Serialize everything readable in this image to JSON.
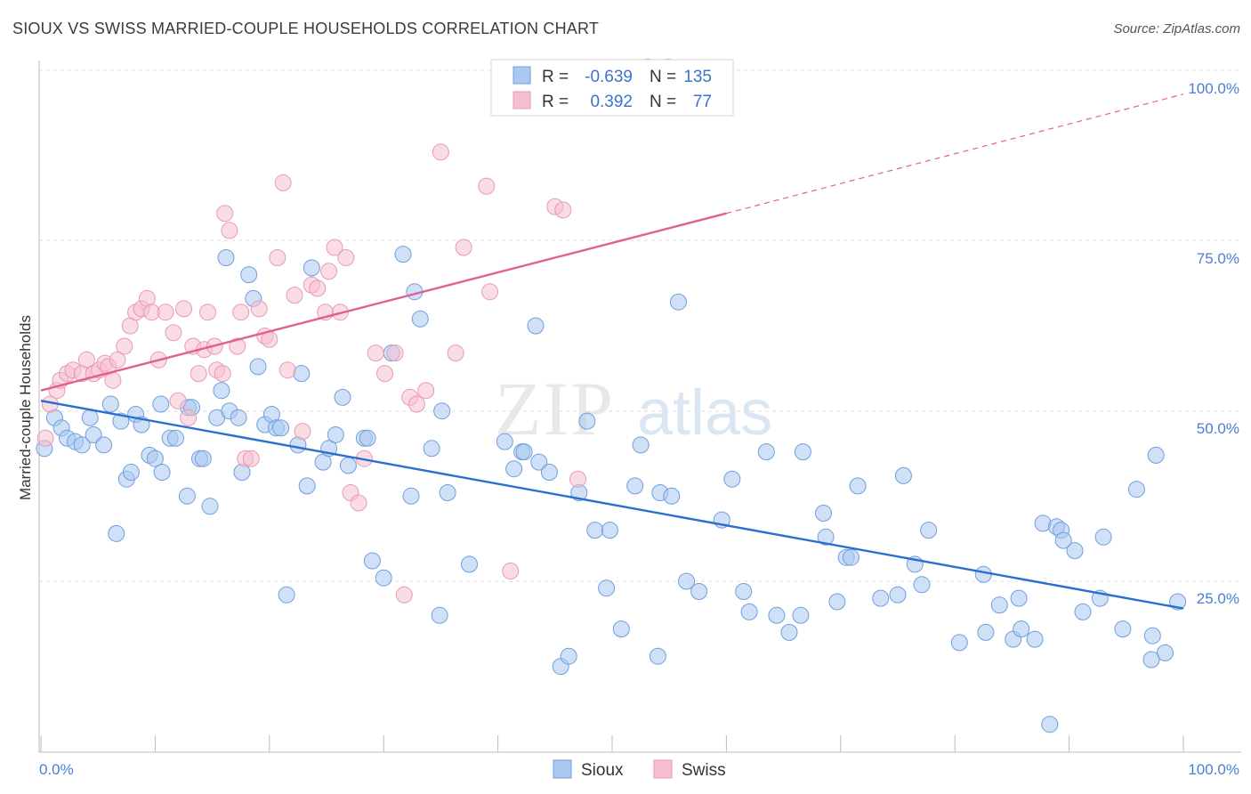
{
  "title": "SIOUX VS SWISS MARRIED-COUPLE HOUSEHOLDS CORRELATION CHART",
  "source": "Source: ZipAtlas.com",
  "watermark": {
    "zip": "ZIP",
    "atlas": "atlas"
  },
  "colors": {
    "sioux_fill": "#aac8f0",
    "sioux_stroke": "#6f9fdc",
    "sioux_line": "#2a6fd0",
    "swiss_fill": "#f6bfd0",
    "swiss_stroke": "#e89ab4",
    "swiss_line": "#e0608e",
    "tick_text": "#4a7fd0",
    "grid": "#dddddd"
  },
  "legend_top": {
    "row1": {
      "r_label": "R =",
      "r_value": "-0.639",
      "n_label": "N =",
      "n_value": "135"
    },
    "row2": {
      "r_label": "R =",
      "r_value": "0.392",
      "n_label": "N =",
      "n_value": "77"
    }
  },
  "legend_bottom": {
    "series1": "Sioux",
    "series2": "Swiss"
  },
  "chart_data": {
    "type": "scatter",
    "title": "SIOUX VS SWISS MARRIED-COUPLE HOUSEHOLDS CORRELATION CHART",
    "xlabel": "",
    "ylabel": "Married-couple Households",
    "xlim": [
      0,
      100
    ],
    "ylim": [
      0,
      105
    ],
    "x_tick_labels": [
      "0.0%",
      "100.0%"
    ],
    "y_tick_labels": [
      "25.0%",
      "50.0%",
      "75.0%",
      "100.0%"
    ],
    "y_ticks": [
      25,
      50,
      75,
      100
    ],
    "grid": true,
    "series": [
      {
        "name": "Sioux",
        "trend": {
          "x": [
            0,
            100
          ],
          "y": [
            51.5,
            21.0
          ]
        },
        "points": [
          [
            0.3,
            44.5
          ],
          [
            1.2,
            49
          ],
          [
            1.8,
            47.5
          ],
          [
            2.3,
            46
          ],
          [
            3,
            45.5
          ],
          [
            3.6,
            45
          ],
          [
            4.3,
            49
          ],
          [
            4.6,
            46.5
          ],
          [
            5.5,
            45
          ],
          [
            6.1,
            51
          ],
          [
            6.6,
            32
          ],
          [
            7,
            48.5
          ],
          [
            7.5,
            40
          ],
          [
            7.9,
            41
          ],
          [
            8.3,
            49.5
          ],
          [
            8.8,
            48
          ],
          [
            9.5,
            43.5
          ],
          [
            10,
            43
          ],
          [
            10.5,
            51
          ],
          [
            10.6,
            41
          ],
          [
            11.3,
            46
          ],
          [
            11.8,
            46
          ],
          [
            12.8,
            37.5
          ],
          [
            12.9,
            50.5
          ],
          [
            13.2,
            50.5
          ],
          [
            13.9,
            43
          ],
          [
            14.2,
            43
          ],
          [
            14.8,
            36
          ],
          [
            15.4,
            49
          ],
          [
            15.8,
            53
          ],
          [
            16.2,
            72.5
          ],
          [
            16.5,
            50
          ],
          [
            17.3,
            49
          ],
          [
            17.6,
            41
          ],
          [
            18.2,
            70
          ],
          [
            18.6,
            66.5
          ],
          [
            19,
            56.5
          ],
          [
            19.6,
            48
          ],
          [
            20.2,
            49.5
          ],
          [
            20.6,
            47.5
          ],
          [
            21,
            47.5
          ],
          [
            21.5,
            23
          ],
          [
            22.5,
            45
          ],
          [
            22.8,
            55.5
          ],
          [
            23.3,
            39
          ],
          [
            23.7,
            71
          ],
          [
            24.7,
            42.5
          ],
          [
            25.2,
            44.5
          ],
          [
            25.8,
            46.5
          ],
          [
            26.4,
            52
          ],
          [
            26.9,
            42
          ],
          [
            28.3,
            46
          ],
          [
            28.6,
            46
          ],
          [
            29,
            28
          ],
          [
            30,
            25.5
          ],
          [
            30.7,
            58.5
          ],
          [
            31.7,
            73
          ],
          [
            32.4,
            37.5
          ],
          [
            32.7,
            67.5
          ],
          [
            33.2,
            63.5
          ],
          [
            34.2,
            44.5
          ],
          [
            34.9,
            20
          ],
          [
            35.1,
            50
          ],
          [
            35.6,
            38
          ],
          [
            37.5,
            27.5
          ],
          [
            40.6,
            45.5
          ],
          [
            41.4,
            41.5
          ],
          [
            42.1,
            44
          ],
          [
            42.3,
            44
          ],
          [
            43.3,
            62.5
          ],
          [
            43.6,
            42.5
          ],
          [
            44.5,
            41
          ],
          [
            45.5,
            12.5
          ],
          [
            46.2,
            14
          ],
          [
            47.1,
            38
          ],
          [
            47.8,
            48.5
          ],
          [
            48.5,
            32.5
          ],
          [
            49.5,
            24
          ],
          [
            49.8,
            32.5
          ],
          [
            50.8,
            18
          ],
          [
            52,
            39
          ],
          [
            52.5,
            45
          ],
          [
            54,
            14
          ],
          [
            54.2,
            38
          ],
          [
            55.2,
            37.5
          ],
          [
            55.8,
            66
          ],
          [
            56.5,
            25
          ],
          [
            57.6,
            23.5
          ],
          [
            59.6,
            34
          ],
          [
            60.5,
            40
          ],
          [
            61.5,
            23.5
          ],
          [
            62,
            20.5
          ],
          [
            63.5,
            44
          ],
          [
            64.4,
            20
          ],
          [
            65.5,
            17.5
          ],
          [
            66.5,
            20
          ],
          [
            66.7,
            44
          ],
          [
            68.5,
            35
          ],
          [
            68.7,
            31.5
          ],
          [
            69.7,
            22
          ],
          [
            70.5,
            28.5
          ],
          [
            70.9,
            28.5
          ],
          [
            71.5,
            39
          ],
          [
            73.5,
            22.5
          ],
          [
            75,
            23
          ],
          [
            75.5,
            40.5
          ],
          [
            76.5,
            27.5
          ],
          [
            77.1,
            24.5
          ],
          [
            77.7,
            32.5
          ],
          [
            80.4,
            16
          ],
          [
            82.5,
            26
          ],
          [
            82.7,
            17.5
          ],
          [
            83.9,
            21.5
          ],
          [
            85.1,
            16.5
          ],
          [
            85.6,
            22.5
          ],
          [
            85.8,
            18
          ],
          [
            87,
            16.5
          ],
          [
            87.7,
            33.5
          ],
          [
            88.3,
            4
          ],
          [
            88.9,
            33
          ],
          [
            89.3,
            32.5
          ],
          [
            89.5,
            31
          ],
          [
            90.5,
            29.5
          ],
          [
            91.2,
            20.5
          ],
          [
            92.7,
            22.5
          ],
          [
            93,
            31.5
          ],
          [
            94.7,
            18
          ],
          [
            95.9,
            38.5
          ],
          [
            97.2,
            13.5
          ],
          [
            97.3,
            17
          ],
          [
            97.6,
            43.5
          ],
          [
            98.4,
            14.5
          ],
          [
            99.5,
            22
          ]
        ]
      },
      {
        "name": "Swiss",
        "trend": {
          "x": [
            0,
            60
          ],
          "y": [
            53.0,
            79.0
          ],
          "x_dashed_end": 100,
          "y_dashed_end": 96.5
        },
        "points": [
          [
            0.4,
            46
          ],
          [
            0.8,
            51
          ],
          [
            1.4,
            53
          ],
          [
            1.7,
            54.5
          ],
          [
            2.3,
            55.5
          ],
          [
            2.8,
            56
          ],
          [
            3.6,
            55.5
          ],
          [
            4,
            57.5
          ],
          [
            4.6,
            55.5
          ],
          [
            5.1,
            56
          ],
          [
            5.6,
            57
          ],
          [
            5.9,
            56.5
          ],
          [
            6.3,
            54.5
          ],
          [
            6.7,
            57.5
          ],
          [
            7.3,
            59.5
          ],
          [
            7.8,
            62.5
          ],
          [
            8.3,
            64.5
          ],
          [
            8.8,
            65
          ],
          [
            9.3,
            66.5
          ],
          [
            9.7,
            64.5
          ],
          [
            10.3,
            57.5
          ],
          [
            10.9,
            64.5
          ],
          [
            11.6,
            61.5
          ],
          [
            12,
            51.5
          ],
          [
            12.5,
            65
          ],
          [
            12.9,
            49
          ],
          [
            13.3,
            59.5
          ],
          [
            13.8,
            55.5
          ],
          [
            14.3,
            59
          ],
          [
            14.6,
            64.5
          ],
          [
            15.2,
            59.5
          ],
          [
            15.4,
            56
          ],
          [
            15.9,
            55.5
          ],
          [
            16.1,
            79
          ],
          [
            16.5,
            76.5
          ],
          [
            17.2,
            59.5
          ],
          [
            17.5,
            64.5
          ],
          [
            17.9,
            43
          ],
          [
            18.4,
            43
          ],
          [
            19.1,
            65
          ],
          [
            19.6,
            61
          ],
          [
            20,
            60.5
          ],
          [
            20.7,
            72.5
          ],
          [
            21.2,
            83.5
          ],
          [
            21.6,
            56
          ],
          [
            22.2,
            67
          ],
          [
            22.9,
            47
          ],
          [
            23.7,
            68.5
          ],
          [
            24.2,
            68
          ],
          [
            24.9,
            64.5
          ],
          [
            25.2,
            70.5
          ],
          [
            25.7,
            74
          ],
          [
            26.2,
            64.5
          ],
          [
            26.7,
            72.5
          ],
          [
            27.1,
            38
          ],
          [
            27.8,
            36.5
          ],
          [
            28.3,
            43
          ],
          [
            29.3,
            58.5
          ],
          [
            30.1,
            55.5
          ],
          [
            31,
            58.5
          ],
          [
            31.8,
            23
          ],
          [
            32.3,
            52
          ],
          [
            32.9,
            51
          ],
          [
            33.7,
            53
          ],
          [
            35,
            88
          ],
          [
            36.3,
            58.5
          ],
          [
            37,
            74
          ],
          [
            39,
            83
          ],
          [
            39.3,
            67.5
          ],
          [
            41.1,
            26.5
          ],
          [
            45,
            80
          ],
          [
            45.7,
            79.5
          ],
          [
            47,
            40
          ],
          [
            52.2,
            100
          ],
          [
            53.1,
            100.5
          ],
          [
            54.4,
            100
          ],
          [
            54.9,
            100.5
          ]
        ]
      }
    ]
  }
}
